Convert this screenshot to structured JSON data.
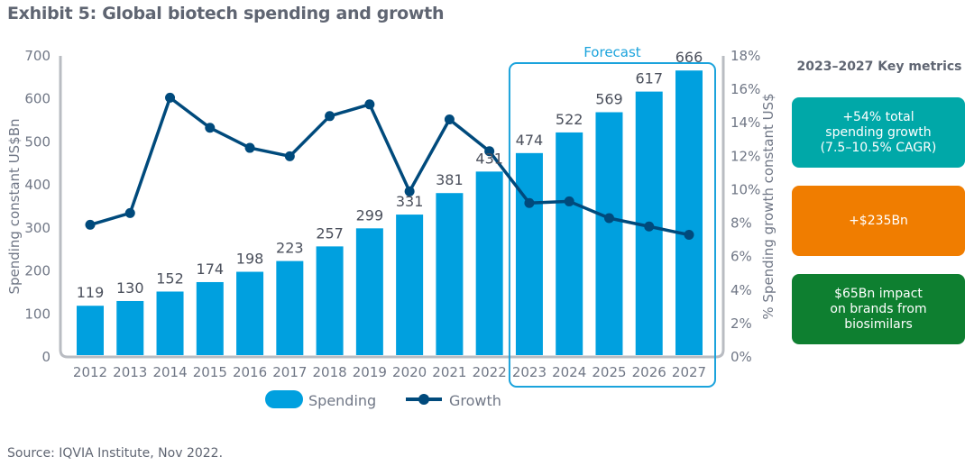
{
  "title": "Exhibit 5: Global biotech spending and growth",
  "source": "Source: IQVIA Institute, Nov 2022.",
  "panel": {
    "title": "2023–2027 Key metrics",
    "metrics": [
      {
        "text": "+54% total\nspending growth\n(7.5–10.5% CAGR)",
        "color": "#00a8a8"
      },
      {
        "text": "+$235Bn",
        "color": "#f07d00"
      },
      {
        "text": "$65Bn impact\non brands from\nbiosimilars",
        "color": "#0e7f30"
      }
    ]
  },
  "chart_data": {
    "type": "bar",
    "title": "Exhibit 5: Global biotech spending and growth",
    "categories": [
      "2012",
      "2013",
      "2014",
      "2015",
      "2016",
      "2017",
      "2018",
      "2019",
      "2020",
      "2021",
      "2022",
      "2023",
      "2024",
      "2025",
      "2026",
      "2027"
    ],
    "series": [
      {
        "name": "Spending",
        "type": "bar",
        "axis": "left",
        "color": "#00a0df",
        "values": [
          119,
          130,
          152,
          174,
          198,
          223,
          257,
          299,
          331,
          381,
          431,
          474,
          522,
          569,
          617,
          666
        ]
      },
      {
        "name": "Growth",
        "type": "line",
        "axis": "right",
        "color": "#004a7c",
        "values": [
          7.9,
          8.6,
          15.5,
          13.7,
          12.5,
          12.0,
          14.4,
          15.1,
          9.9,
          14.2,
          12.3,
          9.2,
          9.3,
          8.3,
          7.8,
          7.3
        ]
      }
    ],
    "ylabel": "Spending constant US$Bn",
    "ylim": [
      0,
      700
    ],
    "yticks": [
      "0",
      "100",
      "200",
      "300",
      "400",
      "500",
      "600",
      "700"
    ],
    "y2label": "% Spending growth constant US$",
    "y2lim": [
      0,
      18
    ],
    "y2ticks": [
      "0%",
      "2%",
      "4%",
      "6%",
      "8%",
      "10%",
      "12%",
      "14%",
      "16%",
      "18%"
    ],
    "annotation": {
      "label": "Forecast",
      "from": "2023",
      "to": "2027"
    },
    "legend": [
      "Spending",
      "Growth"
    ],
    "legend_position": "bottom",
    "grid": false
  }
}
